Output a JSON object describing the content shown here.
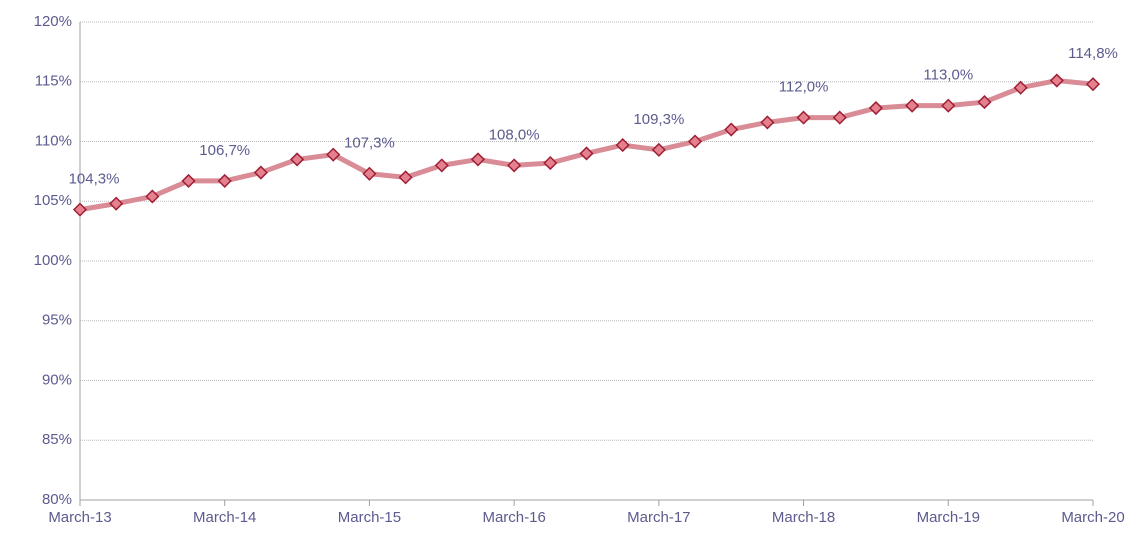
{
  "chart_data": {
    "type": "line",
    "categories": [
      "March-13",
      null,
      null,
      null,
      "March-14",
      null,
      null,
      null,
      "March-15",
      null,
      null,
      null,
      "March-16",
      null,
      null,
      null,
      "March-17",
      null,
      null,
      null,
      "March-18",
      null,
      null,
      null,
      "March-19",
      null,
      null,
      null,
      "March-20"
    ],
    "series": [
      {
        "color": "#d98b96",
        "marker_color": "#e5808f",
        "marker_edge": "#9e1f33",
        "values": [
          104.3,
          104.8,
          105.4,
          106.7,
          106.7,
          107.4,
          108.5,
          108.9,
          107.3,
          107.0,
          108.0,
          108.5,
          108.0,
          108.2,
          109.0,
          109.7,
          109.3,
          110.0,
          111.0,
          111.6,
          112.0,
          112.0,
          112.8,
          113.0,
          113.0,
          113.3,
          114.5,
          115.1,
          114.8
        ],
        "value_labels": [
          "104,3%",
          null,
          null,
          null,
          "106,7%",
          null,
          null,
          null,
          "107,3%",
          null,
          null,
          null,
          "108,0%",
          null,
          null,
          null,
          "109,3%",
          null,
          null,
          null,
          "112,0%",
          null,
          null,
          null,
          "113,0%",
          null,
          null,
          null,
          "114,8%"
        ]
      }
    ],
    "ylim": [
      80,
      120
    ],
    "yticks": [
      {
        "value": 80,
        "label": "80%"
      },
      {
        "value": 85,
        "label": "85%"
      },
      {
        "value": 90,
        "label": "90%"
      },
      {
        "value": 95,
        "label": "95%"
      },
      {
        "value": 100,
        "label": "100%"
      },
      {
        "value": 105,
        "label": "105%"
      },
      {
        "value": 110,
        "label": "110%"
      },
      {
        "value": 115,
        "label": "115%"
      },
      {
        "value": 120,
        "label": "120%"
      }
    ],
    "grid": true
  }
}
